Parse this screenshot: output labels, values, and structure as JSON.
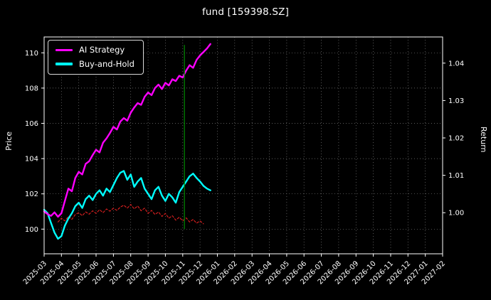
{
  "chart_data": {
    "type": "line",
    "title": "fund [159398.SZ]",
    "ylabel_left": "Price",
    "ylabel_right": "Return",
    "x_unit": "months from 2025-03",
    "x_tick_labels": [
      "2025-03",
      "2025-04",
      "2025-05",
      "2025-06",
      "2025-07",
      "2025-08",
      "2025-09",
      "2025-10",
      "2025-11",
      "2025-12",
      "2026-01",
      "2026-02",
      "2026-03",
      "2026-04",
      "2026-05",
      "2026-06",
      "2026-07",
      "2026-08",
      "2026-09",
      "2026-10",
      "2026-11",
      "2026-12",
      "2027-01",
      "2027-02"
    ],
    "left_ylim": [
      98.6,
      110.9
    ],
    "right_ylim": [
      0.989,
      1.047
    ],
    "left_yticks": [
      100,
      102,
      104,
      106,
      108,
      110
    ],
    "right_yticks": [
      1.0,
      1.01,
      1.02,
      1.03,
      1.04
    ],
    "grid": true,
    "legend_position": "upper-left",
    "colors": {
      "background": "#000000",
      "text": "#ffffff",
      "grid": "#7a7a7a",
      "spine": "#ffffff"
    },
    "series": [
      {
        "name": "AI Strategy",
        "axis": "left",
        "color": "#ff00ff",
        "width": 2.4,
        "dash": "",
        "x": [
          0,
          0.2,
          0.4,
          0.6,
          0.8,
          1,
          1.2,
          1.4,
          1.6,
          1.8,
          2,
          2.2,
          2.4,
          2.6,
          2.8,
          3,
          3.2,
          3.4,
          3.6,
          3.8,
          4,
          4.2,
          4.4,
          4.6,
          4.8,
          5,
          5.2,
          5.4,
          5.6,
          5.8,
          6,
          6.2,
          6.4,
          6.6,
          6.8,
          7,
          7.2,
          7.4,
          7.6,
          7.8,
          8,
          8.2,
          8.4,
          8.6,
          8.8,
          9,
          9.2,
          9.4,
          9.6
        ],
        "y": [
          101.0,
          100.85,
          100.75,
          100.95,
          100.7,
          100.9,
          101.6,
          102.3,
          102.15,
          102.9,
          103.25,
          103.1,
          103.7,
          103.85,
          104.2,
          104.5,
          104.35,
          104.9,
          105.15,
          105.45,
          105.8,
          105.65,
          106.1,
          106.3,
          106.15,
          106.6,
          106.9,
          107.15,
          107.05,
          107.5,
          107.75,
          107.6,
          108.0,
          108.2,
          107.95,
          108.3,
          108.15,
          108.5,
          108.4,
          108.7,
          108.6,
          109.0,
          109.3,
          109.15,
          109.6,
          109.85,
          110.05,
          110.25,
          110.5
        ]
      },
      {
        "name": "Buy-and-Hold",
        "axis": "left",
        "color": "#00ffff",
        "width": 2.4,
        "dash": "",
        "x": [
          0,
          0.2,
          0.4,
          0.6,
          0.8,
          1,
          1.2,
          1.4,
          1.6,
          1.8,
          2,
          2.2,
          2.4,
          2.6,
          2.8,
          3,
          3.2,
          3.4,
          3.6,
          3.8,
          4,
          4.2,
          4.4,
          4.6,
          4.8,
          5,
          5.2,
          5.4,
          5.6,
          5.8,
          6,
          6.2,
          6.4,
          6.6,
          6.8,
          7,
          7.2,
          7.4,
          7.6,
          7.8,
          8,
          8.2,
          8.4,
          8.6,
          8.8,
          9,
          9.2,
          9.4,
          9.6
        ],
        "y": [
          101.1,
          100.9,
          100.35,
          99.8,
          99.45,
          99.6,
          100.2,
          100.6,
          100.9,
          101.3,
          101.5,
          101.2,
          101.7,
          101.9,
          101.65,
          102.0,
          102.2,
          101.9,
          102.3,
          102.1,
          102.5,
          102.9,
          103.2,
          103.3,
          102.8,
          103.1,
          102.4,
          102.7,
          102.9,
          102.3,
          102.0,
          101.7,
          102.2,
          102.4,
          101.9,
          101.6,
          102.0,
          101.8,
          101.5,
          102.1,
          102.4,
          102.7,
          103.0,
          103.15,
          102.9,
          102.7,
          102.45,
          102.3,
          102.2
        ]
      },
      {
        "name": "return-baseline",
        "axis": "right",
        "color": "#e02020",
        "width": 1.1,
        "dash": "3 2.5",
        "x": [
          0.8,
          1,
          1.2,
          1.4,
          1.6,
          1.8,
          2,
          2.2,
          2.4,
          2.6,
          2.8,
          3,
          3.2,
          3.4,
          3.6,
          3.8,
          4,
          4.2,
          4.4,
          4.6,
          4.8,
          5,
          5.2,
          5.4,
          5.6,
          5.8,
          6,
          6.2,
          6.4,
          6.6,
          6.8,
          7,
          7.2,
          7.4,
          7.6,
          7.8,
          8,
          8.2,
          8.4,
          8.6,
          8.8,
          9,
          9.2
        ],
        "y": [
          0.9975,
          0.9985,
          0.9978,
          0.999,
          0.9982,
          0.9995,
          1.0,
          0.9992,
          1.0002,
          0.9996,
          1.0005,
          0.9998,
          1.0008,
          1.0,
          1.001,
          1.0004,
          1.0012,
          1.0006,
          1.0015,
          1.002,
          1.0012,
          1.0022,
          1.001,
          1.0018,
          1.0005,
          1.0012,
          0.9998,
          1.0006,
          0.9995,
          1.0002,
          0.999,
          0.9998,
          0.9985,
          0.9992,
          0.998,
          0.9988,
          0.9978,
          0.9986,
          0.9975,
          0.9982,
          0.9972,
          0.9978,
          0.997
        ]
      }
    ],
    "vline": {
      "x": 8.1,
      "color": "#008000",
      "y_from": 100.0,
      "y_to": 110.45,
      "axis": "left"
    }
  },
  "legend": {
    "items": [
      {
        "label": "AI Strategy",
        "color": "#ff00ff"
      },
      {
        "label": "Buy-and-Hold",
        "color": "#00ffff"
      }
    ]
  }
}
